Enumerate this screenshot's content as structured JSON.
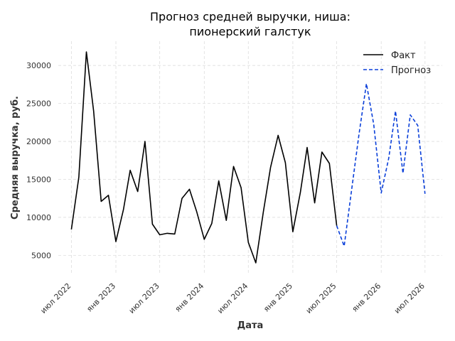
{
  "chart_data": {
    "type": "line",
    "title": [
      "Прогноз средней выручки, ниша:",
      "пионерский галстук"
    ],
    "xlabel": "Дата",
    "ylabel": "Средняя выручка, руб.",
    "x_ticks": [
      {
        "date": "2022-07-01",
        "label": "июл 2022"
      },
      {
        "date": "2023-01-01",
        "label": "янв 2023"
      },
      {
        "date": "2023-07-01",
        "label": "июл 2023"
      },
      {
        "date": "2024-01-01",
        "label": "янв 2024"
      },
      {
        "date": "2024-07-01",
        "label": "июл 2024"
      },
      {
        "date": "2025-01-01",
        "label": "янв 2025"
      },
      {
        "date": "2025-07-01",
        "label": "июл 2025"
      },
      {
        "date": "2026-01-01",
        "label": "янв 2026"
      },
      {
        "date": "2026-07-01",
        "label": "июл 2026"
      }
    ],
    "y_ticks": [
      5000,
      10000,
      15000,
      20000,
      25000,
      30000
    ],
    "xlim": [
      "2022-05-08",
      "2026-09-10"
    ],
    "ylim": [
      2600,
      33200
    ],
    "grid": true,
    "legend_position": "top-right",
    "series": [
      {
        "name": "Факт",
        "color": "#000000",
        "style": "solid",
        "points": [
          [
            "2022-07-01",
            8400
          ],
          [
            "2022-08-01",
            15300
          ],
          [
            "2022-09-01",
            31800
          ],
          [
            "2022-10-01",
            24000
          ],
          [
            "2022-11-01",
            12100
          ],
          [
            "2022-12-01",
            12900
          ],
          [
            "2023-01-01",
            6800
          ],
          [
            "2023-02-01",
            11000
          ],
          [
            "2023-03-01",
            16200
          ],
          [
            "2023-04-01",
            13400
          ],
          [
            "2023-05-01",
            20000
          ],
          [
            "2023-06-01",
            9100
          ],
          [
            "2023-07-01",
            7700
          ],
          [
            "2023-08-01",
            7900
          ],
          [
            "2023-09-01",
            7800
          ],
          [
            "2023-10-01",
            12500
          ],
          [
            "2023-11-01",
            13700
          ],
          [
            "2023-12-01",
            10700
          ],
          [
            "2024-01-01",
            7100
          ],
          [
            "2024-02-01",
            9200
          ],
          [
            "2024-03-01",
            14800
          ],
          [
            "2024-04-01",
            9600
          ],
          [
            "2024-05-01",
            16700
          ],
          [
            "2024-06-01",
            13900
          ],
          [
            "2024-07-01",
            6700
          ],
          [
            "2024-08-01",
            4000
          ],
          [
            "2024-09-01",
            10700
          ],
          [
            "2024-10-01",
            16600
          ],
          [
            "2024-11-01",
            20800
          ],
          [
            "2024-12-01",
            17200
          ],
          [
            "2025-01-01",
            8100
          ],
          [
            "2025-02-01",
            13300
          ],
          [
            "2025-03-01",
            19200
          ],
          [
            "2025-04-01",
            11900
          ],
          [
            "2025-05-01",
            18600
          ],
          [
            "2025-06-01",
            17100
          ],
          [
            "2025-07-01",
            8900
          ]
        ]
      },
      {
        "name": "Прогноз",
        "color": "#0a3fd9",
        "style": "dashed",
        "points": [
          [
            "2025-07-01",
            8900
          ],
          [
            "2025-08-01",
            6200
          ],
          [
            "2025-09-01",
            13700
          ],
          [
            "2025-10-01",
            20900
          ],
          [
            "2025-11-01",
            27600
          ],
          [
            "2025-12-01",
            22300
          ],
          [
            "2026-01-01",
            13200
          ],
          [
            "2026-02-01",
            17800
          ],
          [
            "2026-03-01",
            24000
          ],
          [
            "2026-04-01",
            15800
          ],
          [
            "2026-05-01",
            23500
          ],
          [
            "2026-06-01",
            22100
          ],
          [
            "2026-07-01",
            13100
          ]
        ]
      }
    ]
  }
}
